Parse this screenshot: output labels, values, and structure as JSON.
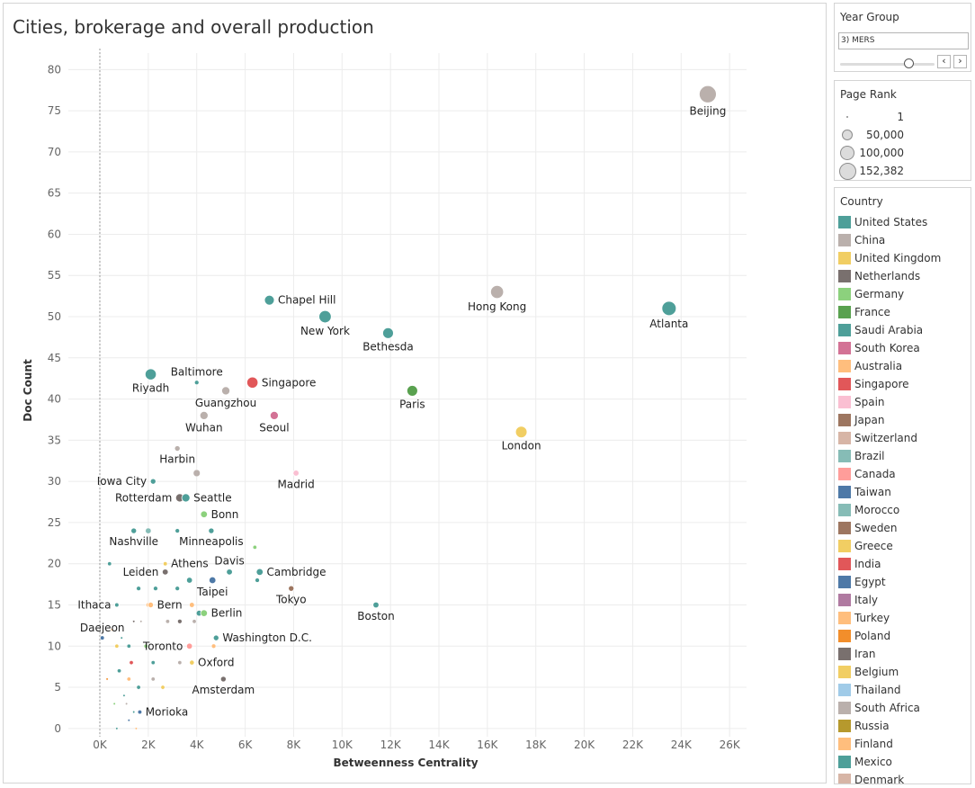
{
  "chart_data": {
    "type": "scatter",
    "title": "Cities, brokerage and overall production",
    "xlabel": "Betweenness Centrality",
    "ylabel": "Doc Count",
    "xlim": [
      -1300,
      26700
    ],
    "ylim": [
      -1,
      82
    ],
    "x_ticks": [
      0,
      2000,
      4000,
      6000,
      8000,
      10000,
      12000,
      14000,
      16000,
      18000,
      20000,
      22000,
      24000,
      26000
    ],
    "x_tick_labels": [
      "0K",
      "2K",
      "4K",
      "6K",
      "8K",
      "10K",
      "12K",
      "14K",
      "16K",
      "18K",
      "20K",
      "22K",
      "24K",
      "26K"
    ],
    "y_ticks": [
      0,
      5,
      10,
      15,
      20,
      25,
      30,
      35,
      40,
      45,
      50,
      55,
      60,
      65,
      70,
      75,
      80
    ],
    "grid": true,
    "size_encoding": "Page Rank",
    "color_encoding": "Country",
    "labeled_points": [
      {
        "label": "Beijing",
        "x": 25100,
        "y": 77,
        "rank": 152382,
        "color": "#bab0ac",
        "label_pos": "below"
      },
      {
        "label": "Atlanta",
        "x": 23500,
        "y": 51,
        "rank": 100000,
        "color": "#4e9f99",
        "label_pos": "below"
      },
      {
        "label": "Hong Kong",
        "x": 16400,
        "y": 53,
        "rank": 80000,
        "color": "#bab0ac",
        "label_pos": "below"
      },
      {
        "label": "London",
        "x": 17400,
        "y": 36,
        "rank": 60000,
        "color": "#f1ce63",
        "label_pos": "below"
      },
      {
        "label": "Chapel Hill",
        "x": 7000,
        "y": 52,
        "rank": 40000,
        "color": "#4e9f99",
        "label_pos": "right"
      },
      {
        "label": "New York",
        "x": 9300,
        "y": 50,
        "rank": 70000,
        "color": "#4e9f99",
        "label_pos": "below"
      },
      {
        "label": "Bethesda",
        "x": 11900,
        "y": 48,
        "rank": 50000,
        "color": "#4e9f99",
        "label_pos": "below"
      },
      {
        "label": "Paris",
        "x": 12900,
        "y": 41,
        "rank": 50000,
        "color": "#59a14f",
        "label_pos": "below"
      },
      {
        "label": "Riyadh",
        "x": 2100,
        "y": 43,
        "rank": 55000,
        "color": "#4e9f99",
        "label_pos": "below"
      },
      {
        "label": "Baltimore",
        "x": 4000,
        "y": 42,
        "rank": 4000,
        "color": "#4e9f99",
        "label_pos": "above"
      },
      {
        "label": "Singapore",
        "x": 6300,
        "y": 42,
        "rank": 55000,
        "color": "#e15759",
        "label_pos": "right"
      },
      {
        "label": "Guangzhou",
        "x": 5200,
        "y": 41,
        "rank": 25000,
        "color": "#bab0ac",
        "label_pos": "below"
      },
      {
        "label": "Wuhan",
        "x": 4300,
        "y": 38,
        "rank": 25000,
        "color": "#bab0ac",
        "label_pos": "below"
      },
      {
        "label": "Seoul",
        "x": 7200,
        "y": 38,
        "rank": 25000,
        "color": "#d37295",
        "label_pos": "below"
      },
      {
        "label": "Harbin",
        "x": 3200,
        "y": 34,
        "rank": 8000,
        "color": "#bab0ac",
        "label_pos": "below"
      },
      {
        "label": "Iowa City",
        "x": 2200,
        "y": 30,
        "rank": 8000,
        "color": "#4e9f99",
        "label_pos": "left"
      },
      {
        "label": "Madrid",
        "x": 8100,
        "y": 31,
        "rank": 10000,
        "color": "#fabfd2",
        "label_pos": "below"
      },
      {
        "label": "Rotterdam",
        "x": 3300,
        "y": 28,
        "rank": 25000,
        "color": "#79706e",
        "label_pos": "left"
      },
      {
        "label": "Seattle",
        "x": 3550,
        "y": 28,
        "rank": 25000,
        "color": "#4e9f99",
        "label_pos": "right"
      },
      {
        "label": "Bonn",
        "x": 4300,
        "y": 26,
        "rank": 15000,
        "color": "#8cd17d",
        "label_pos": "right"
      },
      {
        "label": "Nashville",
        "x": 1400,
        "y": 24,
        "rank": 8000,
        "color": "#4e9f99",
        "label_pos": "below"
      },
      {
        "label": "Minneapolis",
        "x": 4600,
        "y": 24,
        "rank": 8000,
        "color": "#4e9f99",
        "label_pos": "below"
      },
      {
        "label": "Athens",
        "x": 2700,
        "y": 20,
        "rank": 3000,
        "color": "#f1ce63",
        "label_pos": "right"
      },
      {
        "label": "Davis",
        "x": 5350,
        "y": 19,
        "rank": 10000,
        "color": "#4e9f99",
        "label_pos": "above"
      },
      {
        "label": "Leiden",
        "x": 2700,
        "y": 19,
        "rank": 10000,
        "color": "#79706e",
        "label_pos": "left"
      },
      {
        "label": "Cambridge",
        "x": 6600,
        "y": 19,
        "rank": 15000,
        "color": "#4e9f99",
        "label_pos": "right"
      },
      {
        "label": "Taipei",
        "x": 4650,
        "y": 18,
        "rank": 15000,
        "color": "#4e79a7",
        "label_pos": "below"
      },
      {
        "label": "Tokyo",
        "x": 7900,
        "y": 17,
        "rank": 8000,
        "color": "#9d7660",
        "label_pos": "below"
      },
      {
        "label": "Boston",
        "x": 11400,
        "y": 15,
        "rank": 10000,
        "color": "#4e9f99",
        "label_pos": "below"
      },
      {
        "label": "Ithaca",
        "x": 700,
        "y": 15,
        "rank": 3000,
        "color": "#4e9f99",
        "label_pos": "left"
      },
      {
        "label": "Bern",
        "x": 2100,
        "y": 15,
        "rank": 8000,
        "color": "#ffbe7d",
        "label_pos": "right"
      },
      {
        "label": "Berlin",
        "x": 4300,
        "y": 14,
        "rank": 15000,
        "color": "#8cd17d",
        "label_pos": "right"
      },
      {
        "label": "Daejeon",
        "x": 100,
        "y": 11,
        "rank": 3000,
        "color": "#4e79a7",
        "label_pos": "above"
      },
      {
        "label": "Washington D.C.",
        "x": 4800,
        "y": 11,
        "rank": 8000,
        "color": "#4e9f99",
        "label_pos": "right"
      },
      {
        "label": "Toronto",
        "x": 3700,
        "y": 10,
        "rank": 10000,
        "color": "#ff9d9a",
        "label_pos": "left"
      },
      {
        "label": "Oxford",
        "x": 3800,
        "y": 8,
        "rank": 5000,
        "color": "#f1ce63",
        "label_pos": "right"
      },
      {
        "label": "Amsterdam",
        "x": 5100,
        "y": 6,
        "rank": 8000,
        "color": "#79706e",
        "label_pos": "below"
      },
      {
        "label": "Morioka",
        "x": 1650,
        "y": 2,
        "rank": 3000,
        "color": "#4e79a7",
        "label_pos": "right"
      }
    ],
    "unlabeled_points": [
      {
        "x": 6400,
        "y": 22,
        "rank": 2000,
        "color": "#8cd17d"
      },
      {
        "x": 2000,
        "y": 24,
        "rank": 8000,
        "color": "#86bcb6"
      },
      {
        "x": 3200,
        "y": 24,
        "rank": 3000,
        "color": "#4e9f99"
      },
      {
        "x": 400,
        "y": 20,
        "rank": 2000,
        "color": "#4e9f99"
      },
      {
        "x": 4000,
        "y": 31,
        "rank": 15000,
        "color": "#bab0ac"
      },
      {
        "x": 6500,
        "y": 18,
        "rank": 3000,
        "color": "#4e9f99"
      },
      {
        "x": 3700,
        "y": 18,
        "rank": 8000,
        "color": "#4e9f99"
      },
      {
        "x": 1600,
        "y": 17,
        "rank": 3000,
        "color": "#4e9f99"
      },
      {
        "x": 2300,
        "y": 17,
        "rank": 3000,
        "color": "#4e9f99"
      },
      {
        "x": 3200,
        "y": 17,
        "rank": 3000,
        "color": "#4e9f99"
      },
      {
        "x": 2000,
        "y": 15,
        "rank": 3000,
        "color": "#ffbe7d"
      },
      {
        "x": 3800,
        "y": 15,
        "rank": 5000,
        "color": "#ffbe7d"
      },
      {
        "x": 4100,
        "y": 14,
        "rank": 8000,
        "color": "#4e9f99"
      },
      {
        "x": 2800,
        "y": 13,
        "rank": 2000,
        "color": "#bab0ac"
      },
      {
        "x": 3300,
        "y": 13,
        "rank": 3000,
        "color": "#79706e"
      },
      {
        "x": 3900,
        "y": 13,
        "rank": 2000,
        "color": "#bab0ac"
      },
      {
        "x": 4700,
        "y": 10,
        "rank": 3000,
        "color": "#ffbe7d"
      },
      {
        "x": 1900,
        "y": 10,
        "rank": 2000,
        "color": "#8cd17d"
      },
      {
        "x": 1200,
        "y": 10,
        "rank": 2000,
        "color": "#4e9f99"
      },
      {
        "x": 700,
        "y": 10,
        "rank": 2000,
        "color": "#f1ce63"
      },
      {
        "x": 3300,
        "y": 8,
        "rank": 2000,
        "color": "#bab0ac"
      },
      {
        "x": 2200,
        "y": 8,
        "rank": 2000,
        "color": "#4e9f99"
      },
      {
        "x": 2600,
        "y": 5,
        "rank": 2000,
        "color": "#f1ce63"
      },
      {
        "x": 2200,
        "y": 6,
        "rank": 2000,
        "color": "#bab0ac"
      },
      {
        "x": 1600,
        "y": 5,
        "rank": 2000,
        "color": "#4e9f99"
      },
      {
        "x": 1200,
        "y": 6,
        "rank": 2000,
        "color": "#ffbe7d"
      },
      {
        "x": 800,
        "y": 7,
        "rank": 2000,
        "color": "#4e9f99"
      },
      {
        "x": 1300,
        "y": 8,
        "rank": 2000,
        "color": "#e15759"
      },
      {
        "x": 900,
        "y": 11,
        "rank": 1,
        "color": "#4e9f99"
      },
      {
        "x": 1400,
        "y": 13,
        "rank": 1,
        "color": "#79706e"
      },
      {
        "x": 1700,
        "y": 13,
        "rank": 1,
        "color": "#bab0ac"
      },
      {
        "x": 500,
        "y": 12,
        "rank": 1,
        "color": "#ffbe7d"
      },
      {
        "x": 1000,
        "y": 4,
        "rank": 1,
        "color": "#4e9f99"
      },
      {
        "x": 600,
        "y": 3,
        "rank": 1,
        "color": "#8cd17d"
      },
      {
        "x": 1400,
        "y": 2,
        "rank": 1,
        "color": "#4e9f99"
      },
      {
        "x": 1200,
        "y": 1,
        "rank": 1,
        "color": "#4e79a7"
      },
      {
        "x": 700,
        "y": 0,
        "rank": 1,
        "color": "#4e9f99"
      },
      {
        "x": 1500,
        "y": 0,
        "rank": 1,
        "color": "#ffbe7d"
      },
      {
        "x": 1100,
        "y": 3,
        "rank": 1,
        "color": "#bab0ac"
      },
      {
        "x": 300,
        "y": 6,
        "rank": 1,
        "color": "#f28e2b"
      }
    ]
  },
  "filters": {
    "year_group": {
      "title": "Year Group",
      "value": "3) MERS",
      "prev_label": "‹",
      "next_label": "›",
      "slider_position": 0.72
    }
  },
  "page_rank_legend": {
    "title": "Page Rank",
    "entries": [
      {
        "label": "1",
        "value": 1
      },
      {
        "label": "50,000",
        "value": 50000
      },
      {
        "label": "100,000",
        "value": 100000
      },
      {
        "label": "152,382",
        "value": 152382
      }
    ]
  },
  "country_legend": {
    "title": "Country",
    "items": [
      {
        "name": "United States",
        "color": "#4e9f99"
      },
      {
        "name": "China",
        "color": "#bab0ac"
      },
      {
        "name": "United Kingdom",
        "color": "#f1ce63"
      },
      {
        "name": "Netherlands",
        "color": "#79706e"
      },
      {
        "name": "Germany",
        "color": "#8cd17d"
      },
      {
        "name": "France",
        "color": "#59a14f"
      },
      {
        "name": "Saudi Arabia",
        "color": "#4e9f99"
      },
      {
        "name": "South Korea",
        "color": "#d37295"
      },
      {
        "name": "Australia",
        "color": "#ffbe7d"
      },
      {
        "name": "Singapore",
        "color": "#e15759"
      },
      {
        "name": "Spain",
        "color": "#fabfd2"
      },
      {
        "name": "Japan",
        "color": "#9d7660"
      },
      {
        "name": "Switzerland",
        "color": "#d7b5a6"
      },
      {
        "name": "Brazil",
        "color": "#86bcb6"
      },
      {
        "name": "Canada",
        "color": "#ff9d9a"
      },
      {
        "name": "Taiwan",
        "color": "#4e79a7"
      },
      {
        "name": "Morocco",
        "color": "#86bcb6"
      },
      {
        "name": "Sweden",
        "color": "#9d7660"
      },
      {
        "name": "Greece",
        "color": "#f1ce63"
      },
      {
        "name": "India",
        "color": "#e15759"
      },
      {
        "name": "Egypt",
        "color": "#4e79a7"
      },
      {
        "name": "Italy",
        "color": "#b07aa1"
      },
      {
        "name": "Turkey",
        "color": "#ffbe7d"
      },
      {
        "name": "Poland",
        "color": "#f28e2b"
      },
      {
        "name": "Iran",
        "color": "#79706e"
      },
      {
        "name": "Belgium",
        "color": "#f1ce63"
      },
      {
        "name": "Thailand",
        "color": "#a0cbe8"
      },
      {
        "name": "South Africa",
        "color": "#bab0ac"
      },
      {
        "name": "Russia",
        "color": "#b6992d"
      },
      {
        "name": "Finland",
        "color": "#ffbe7d"
      },
      {
        "name": "Mexico",
        "color": "#4e9f99"
      },
      {
        "name": "Denmark",
        "color": "#d7b5a6"
      }
    ]
  }
}
